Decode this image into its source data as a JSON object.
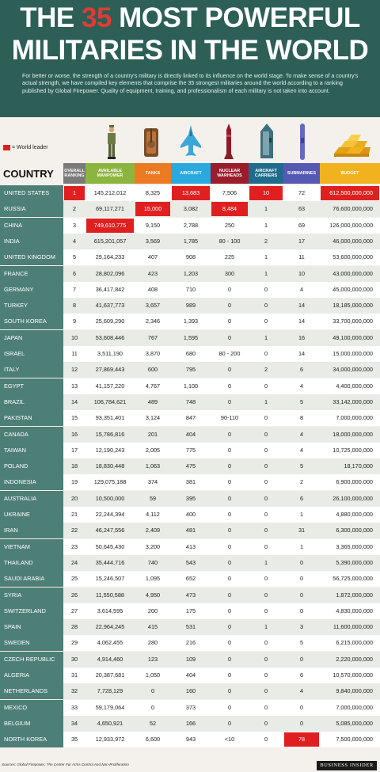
{
  "title": {
    "pre": "THE ",
    "number": "35",
    "post": " MOST POWERFUL",
    "line2": "MILITARIES IN THE WORLD"
  },
  "intro": "For better or worse, the strength of a country's military is directly linked to its influence on the world stage. To make sense of a country's actual strength, we have compiled key elements that comprise the 35 strongest militaries around the world according to a ranking published by Global Firepower. Quality of equipment, training, and professionalism of each military is not taken into account.",
  "legend": "= World leader",
  "country_header": "COUNTRY",
  "headers": {
    "rank": "OVERALL RANKING",
    "manpower": "AVAILABLE MANPOWER",
    "tanks": "TANKS",
    "aircraft": "AIRCRAFT",
    "nuclear": "NUCLEAR WARHEADS",
    "carriers": "AIRCRAFT CARRIERS",
    "subs": "SUBMARINES",
    "budget": "BUDGET"
  },
  "colors": {
    "header_bg": "#2d5f57",
    "lead": "#e02020",
    "rank": "#7a7a7a",
    "manpower": "#8cb53f",
    "tanks": "#ed7a22",
    "aircraft": "#2aa8e0",
    "nuclear": "#9b1c2c",
    "carriers": "#1f6b8c",
    "subs": "#5559b4",
    "budget": "#f2b21f"
  },
  "icons": [
    "soldier-icon",
    "tank-icon",
    "jet-icon",
    "missile-icon",
    "carrier-icon",
    "submarine-icon",
    "gold-bars-icon"
  ],
  "rows": [
    [
      "UNITED STATES",
      "1",
      "145,212,012",
      "8,325",
      "13,683",
      "7,506",
      "10",
      "72",
      "612,500,000,000"
    ],
    [
      "RUSSIA",
      "2",
      "69,117,271",
      "15,000",
      "3,082",
      "8,484",
      "1",
      "63",
      "76,600,000,000"
    ],
    [
      "CHINA",
      "3",
      "749,610,775",
      "9,150",
      "2,788",
      "250",
      "1",
      "69",
      "126,000,000,000"
    ],
    [
      "INDIA",
      "4",
      "615,201,057",
      "3,569",
      "1,785",
      "80 - 100",
      "2",
      "17",
      "46,000,000,000"
    ],
    [
      "UNITED KINGDOM",
      "5",
      "29,164,233",
      "407",
      "908",
      "225",
      "1",
      "11",
      "53,600,000,000"
    ],
    [
      "FRANCE",
      "6",
      "28,802,096",
      "423",
      "1,203",
      "300",
      "1",
      "10",
      "43,000,000,000"
    ],
    [
      "GERMANY",
      "7",
      "36,417,842",
      "408",
      "710",
      "0",
      "0",
      "4",
      "45,000,000,000"
    ],
    [
      "TURKEY",
      "8",
      "41,637,773",
      "3,657",
      "989",
      "0",
      "0",
      "14",
      "18,185,000,000"
    ],
    [
      "SOUTH KOREA",
      "9",
      "25,609,290",
      "2,346",
      "1,393",
      "0",
      "0",
      "14",
      "33,700,000,000"
    ],
    [
      "JAPAN",
      "10",
      "53,608,446",
      "767",
      "1,595",
      "0",
      "1",
      "16",
      "49,100,000,000"
    ],
    [
      "ISRAEL",
      "11",
      "3,511,190",
      "3,870",
      "680",
      "80 - 200",
      "0",
      "14",
      "15,000,000,000"
    ],
    [
      "ITALY",
      "12",
      "27,869,443",
      "600",
      "795",
      "0",
      "2",
      "6",
      "34,000,000,000"
    ],
    [
      "EGYPT",
      "13",
      "41,157,220",
      "4,767",
      "1,100",
      "0",
      "0",
      "4",
      "4,400,000,000"
    ],
    [
      "BRAZIL",
      "14",
      "106,784,621",
      "489",
      "748",
      "0",
      "1",
      "5",
      "33,142,000,000"
    ],
    [
      "PAKISTAN",
      "15",
      "93,351,401",
      "3,124",
      "847",
      "90-110",
      "0",
      "8",
      "7,000,000,000"
    ],
    [
      "CANADA",
      "16",
      "15,786,816",
      "201",
      "404",
      "0",
      "0",
      "4",
      "18,000,000,000"
    ],
    [
      "TAIWAN",
      "17",
      "12,190,243",
      "2,005",
      "775",
      "0",
      "0",
      "4",
      "10,725,000,000"
    ],
    [
      "POLAND",
      "18",
      "18,830,448",
      "1,063",
      "475",
      "0",
      "0",
      "5",
      "18,170,000"
    ],
    [
      "INDONESIA",
      "19",
      "129,075,188",
      "374",
      "381",
      "0",
      "0",
      "2",
      "6,900,000,000"
    ],
    [
      "AUSTRALIA",
      "20",
      "10,500,000",
      "59",
      "395",
      "0",
      "0",
      "6",
      "26,100,000,000"
    ],
    [
      "UKRAINE",
      "21",
      "22,244,394",
      "4,112",
      "400",
      "0",
      "0",
      "1",
      "4,880,000,000"
    ],
    [
      "IRAN",
      "22",
      "46,247,556",
      "2,409",
      "481",
      "0",
      "0",
      "31",
      "6,300,000,000"
    ],
    [
      "VIETNAM",
      "23",
      "50,645,430",
      "3,200",
      "413",
      "0",
      "0",
      "1",
      "3,365,000,000"
    ],
    [
      "THAILAND",
      "24",
      "35,444,716",
      "740",
      "543",
      "0",
      "1",
      "0",
      "5,390,000,000"
    ],
    [
      "SAUDI ARABIA",
      "25",
      "15,246,507",
      "1,095",
      "652",
      "0",
      "0",
      "0",
      "56,725,000,000"
    ],
    [
      "SYRIA",
      "26",
      "11,550,588",
      "4,950",
      "473",
      "0",
      "0",
      "0",
      "1,872,000,000"
    ],
    [
      "SWITZERLAND",
      "27",
      "3,614,595",
      "200",
      "175",
      "0",
      "0",
      "0",
      "4,830,000,000"
    ],
    [
      "SPAIN",
      "28",
      "22,964,245",
      "415",
      "531",
      "0",
      "1",
      "3",
      "11,600,000,000"
    ],
    [
      "SWEDEN",
      "29",
      "4,062,455",
      "280",
      "216",
      "0",
      "0",
      "5",
      "6,215,000,000"
    ],
    [
      "CZECH REPUBLIC",
      "30",
      "4,914,460",
      "123",
      "109",
      "0",
      "0",
      "0",
      "2,220,000,000"
    ],
    [
      "ALGERIA",
      "31",
      "20,387,681",
      "1,050",
      "404",
      "0",
      "0",
      "6",
      "10,570,000,000"
    ],
    [
      "NETHERLANDS",
      "32",
      "7,728,129",
      "0",
      "160",
      "0",
      "0",
      "4",
      "9,840,000,000"
    ],
    [
      "MEXICO",
      "33",
      "59,179,064",
      "0",
      "373",
      "0",
      "0",
      "0",
      "7,000,000,000"
    ],
    [
      "BELGIUM",
      "34",
      "4,650,921",
      "52",
      "166",
      "0",
      "0",
      "0",
      "5,085,000,000"
    ],
    [
      "NORTH KOREA",
      "35",
      "12,933,972",
      "6,600",
      "943",
      "<10",
      "0",
      "78",
      "7,500,000,000"
    ]
  ],
  "leaders": [
    [
      0,
      1
    ],
    [
      0,
      4
    ],
    [
      0,
      6
    ],
    [
      0,
      8
    ],
    [
      1,
      3
    ],
    [
      1,
      5
    ],
    [
      2,
      2
    ],
    [
      34,
      7
    ]
  ],
  "footer": "Sources: Global Firepower, The Center For Arms Control And Non-Proliferation",
  "brand": "BUSINESS INSIDER"
}
